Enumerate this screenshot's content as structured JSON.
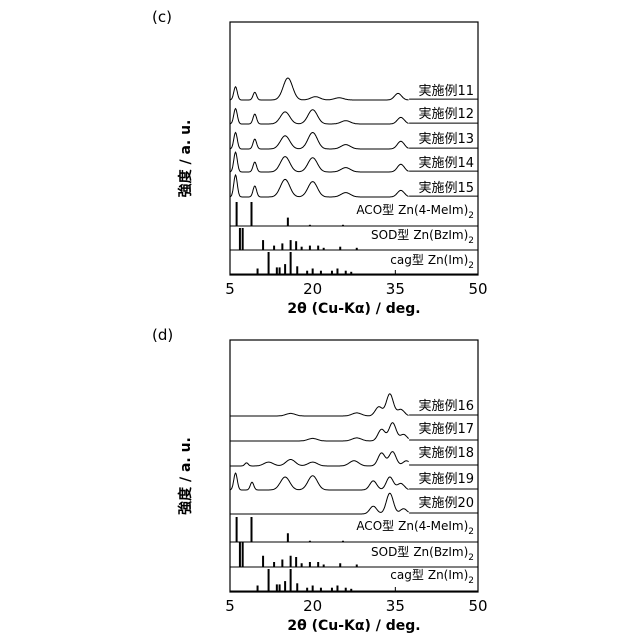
{
  "chart_data": [
    {
      "type": "line",
      "panel_label": "(c)",
      "xlabel": "2θ (Cu-Kα) / deg.",
      "ylabel": "強度 / a. u.",
      "xlim": [
        5,
        50
      ],
      "xticks": [
        "5",
        "20",
        "35",
        "50"
      ],
      "grid": false,
      "series": [
        {
          "name": "実施例11",
          "peaks": [
            [
              6,
              0.6
            ],
            [
              9.5,
              0.35
            ],
            [
              15.5,
              1.0
            ],
            [
              20.5,
              0.15
            ],
            [
              24.8,
              0.1
            ],
            [
              35.5,
              0.3
            ]
          ]
        },
        {
          "name": "実施例12",
          "peaks": [
            [
              6,
              0.7
            ],
            [
              9.5,
              0.45
            ],
            [
              15,
              0.55
            ],
            [
              20,
              0.65
            ],
            [
              26,
              0.15
            ],
            [
              36,
              0.3
            ]
          ]
        },
        {
          "name": "実施例13",
          "peaks": [
            [
              6,
              0.75
            ],
            [
              9.5,
              0.45
            ],
            [
              15,
              0.6
            ],
            [
              20,
              0.75
            ],
            [
              26,
              0.2
            ],
            [
              36,
              0.35
            ]
          ]
        },
        {
          "name": "実施例14",
          "peaks": [
            [
              6,
              0.9
            ],
            [
              9.5,
              0.45
            ],
            [
              15,
              0.7
            ],
            [
              20,
              0.65
            ],
            [
              26,
              0.2
            ],
            [
              36,
              0.35
            ]
          ]
        },
        {
          "name": "実施例15",
          "peaks": [
            [
              6,
              1.0
            ],
            [
              9.5,
              0.5
            ],
            [
              15,
              0.8
            ],
            [
              20,
              0.7
            ],
            [
              26,
              0.2
            ],
            [
              36,
              0.3
            ]
          ]
        }
      ],
      "reference_patterns": [
        {
          "type_label": "ACO型",
          "formula": "Zn(4-MeIm)",
          "formula_sub": "2",
          "peaks": [
            [
              6.2,
              1.0
            ],
            [
              8.9,
              1.0
            ],
            [
              15.5,
              0.35
            ],
            [
              19.5,
              0.05
            ],
            [
              25.5,
              0.05
            ]
          ]
        },
        {
          "type_label": "SOD型",
          "formula": "Zn(BzIm)",
          "formula_sub": "2",
          "peaks": [
            [
              6.8,
              1.0
            ],
            [
              7.3,
              1.0
            ],
            [
              11,
              0.45
            ],
            [
              13,
              0.2
            ],
            [
              14.5,
              0.3
            ],
            [
              16,
              0.45
            ],
            [
              17,
              0.4
            ],
            [
              18,
              0.15
            ],
            [
              19.5,
              0.2
            ],
            [
              21,
              0.2
            ],
            [
              22,
              0.1
            ],
            [
              25,
              0.15
            ],
            [
              28,
              0.1
            ]
          ]
        },
        {
          "type_label": "cag型",
          "formula": "Zn(Im)",
          "formula_sub": "2",
          "peaks": [
            [
              10,
              0.25
            ],
            [
              12,
              1.0
            ],
            [
              13.5,
              0.3
            ],
            [
              14,
              0.3
            ],
            [
              15,
              0.45
            ],
            [
              16,
              1.0
            ],
            [
              17.2,
              0.35
            ],
            [
              19,
              0.15
            ],
            [
              20,
              0.25
            ],
            [
              21.5,
              0.15
            ],
            [
              23.5,
              0.15
            ],
            [
              24.5,
              0.25
            ],
            [
              26,
              0.15
            ],
            [
              27,
              0.1
            ]
          ]
        }
      ]
    },
    {
      "type": "line",
      "panel_label": "(d)",
      "xlabel": "2θ (Cu-Kα) / deg.",
      "ylabel": "強度 / a. u.",
      "xlim": [
        5,
        50
      ],
      "xticks": [
        "5",
        "20",
        "35",
        "50"
      ],
      "grid": false,
      "series": [
        {
          "name": "実施例16",
          "peaks": [
            [
              16,
              0.1
            ],
            [
              28,
              0.12
            ],
            [
              32,
              0.35
            ],
            [
              34,
              0.85
            ],
            [
              36,
              0.25
            ]
          ]
        },
        {
          "name": "実施例17",
          "peaks": [
            [
              20,
              0.1
            ],
            [
              28,
              0.12
            ],
            [
              32.5,
              0.45
            ],
            [
              34.5,
              0.7
            ],
            [
              36.5,
              0.25
            ]
          ]
        },
        {
          "name": "実施例18",
          "peaks": [
            [
              8,
              0.12
            ],
            [
              12,
              0.15
            ],
            [
              16,
              0.25
            ],
            [
              20,
              0.15
            ],
            [
              27.5,
              0.2
            ],
            [
              32.5,
              0.5
            ],
            [
              34.5,
              0.55
            ],
            [
              37,
              0.2
            ]
          ]
        },
        {
          "name": "実施例19",
          "peaks": [
            [
              6,
              0.65
            ],
            [
              9,
              0.3
            ],
            [
              15,
              0.5
            ],
            [
              20,
              0.55
            ],
            [
              31,
              0.35
            ],
            [
              34,
              0.5
            ],
            [
              36,
              0.25
            ]
          ]
        },
        {
          "name": "実施例20",
          "peaks": [
            [
              31,
              0.3
            ],
            [
              34,
              0.8
            ],
            [
              36.5,
              0.2
            ]
          ]
        }
      ],
      "reference_patterns": [
        {
          "type_label": "ACO型",
          "formula": "Zn(4-MeIm)",
          "formula_sub": "2",
          "peaks": [
            [
              6.2,
              1.0
            ],
            [
              8.9,
              1.0
            ],
            [
              15.5,
              0.35
            ],
            [
              19.5,
              0.05
            ],
            [
              25.5,
              0.05
            ]
          ]
        },
        {
          "type_label": "SOD型",
          "formula": "Zn(BzIm)",
          "formula_sub": "2",
          "peaks": [
            [
              6.8,
              1.0
            ],
            [
              7.3,
              1.0
            ],
            [
              11,
              0.45
            ],
            [
              13,
              0.2
            ],
            [
              14.5,
              0.3
            ],
            [
              16,
              0.45
            ],
            [
              17,
              0.4
            ],
            [
              18,
              0.15
            ],
            [
              19.5,
              0.2
            ],
            [
              21,
              0.2
            ],
            [
              22,
              0.1
            ],
            [
              25,
              0.15
            ],
            [
              28,
              0.1
            ]
          ]
        },
        {
          "type_label": "cag型",
          "formula": "Zn(Im)",
          "formula_sub": "2",
          "peaks": [
            [
              10,
              0.25
            ],
            [
              12,
              1.0
            ],
            [
              13.5,
              0.3
            ],
            [
              14,
              0.3
            ],
            [
              15,
              0.45
            ],
            [
              16,
              1.0
            ],
            [
              17.2,
              0.35
            ],
            [
              19,
              0.15
            ],
            [
              20,
              0.25
            ],
            [
              21.5,
              0.15
            ],
            [
              23.5,
              0.15
            ],
            [
              24.5,
              0.25
            ],
            [
              26,
              0.15
            ],
            [
              27,
              0.1
            ]
          ]
        }
      ]
    }
  ]
}
